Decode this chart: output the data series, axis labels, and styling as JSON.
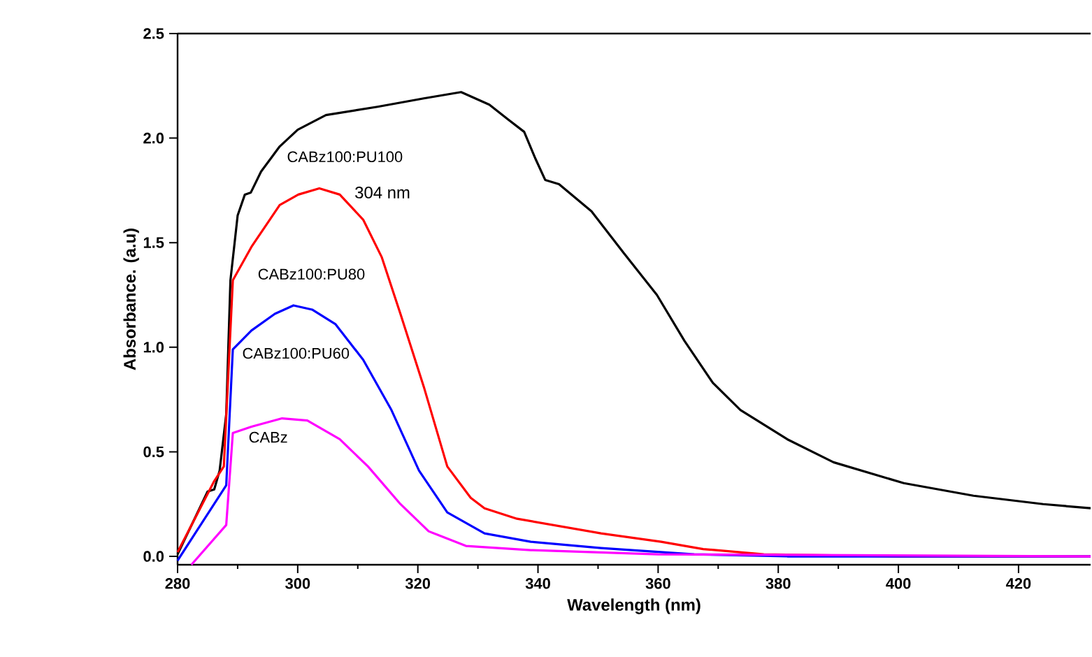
{
  "chart_data": {
    "type": "line",
    "xlabel": "Wavelength (nm)",
    "ylabel": "Absorbance. (a.u)",
    "xlim": [
      280,
      432
    ],
    "ylim": [
      -0.04,
      2.5
    ],
    "xticks": [
      280,
      300,
      320,
      340,
      360,
      380,
      400,
      420
    ],
    "yticks": [
      {
        "value": 0,
        "label": "0.0"
      },
      {
        "value": 0.5,
        "label": "0.5"
      },
      {
        "value": 1,
        "label": "1.0"
      },
      {
        "value": 1.5,
        "label": "1.5"
      },
      {
        "value": 2,
        "label": "2.0"
      },
      {
        "value": 2.5,
        "label": "2.5"
      }
    ],
    "series": [
      {
        "color": "#000000",
        "x": [
          280,
          285,
          286.1,
          287,
          288.1,
          288.8,
          290,
          291.2,
          292.2,
          293.9,
          297,
          300,
          304.7,
          313.3,
          321,
          327.2,
          331.9,
          335,
          337.7,
          339.6,
          341.2,
          343.5,
          348.9,
          354.3,
          359.8,
          364.4,
          369.1,
          373.7,
          381.5,
          389.2,
          400.9,
          412.5,
          424.1,
          432
        ],
        "values": [
          0.01,
          0.31,
          0.32,
          0.41,
          0.68,
          1.32,
          1.63,
          1.73,
          1.74,
          1.84,
          1.96,
          2.04,
          2.11,
          2.15,
          2.19,
          2.22,
          2.16,
          2.09,
          2.03,
          1.9,
          1.8,
          1.78,
          1.65,
          1.45,
          1.25,
          1.03,
          0.83,
          0.7,
          0.56,
          0.45,
          0.35,
          0.29,
          0.25,
          0.23
        ]
      },
      {
        "color": "#ff0000",
        "x": [
          280,
          286.1,
          287.7,
          289.2,
          292.3,
          297,
          300.1,
          303.6,
          307,
          310.9,
          314,
          317.1,
          321,
          324.9,
          328.8,
          331.1,
          336.5,
          350.5,
          360.5,
          367.5,
          377.6,
          400,
          432
        ],
        "values": [
          0.02,
          0.36,
          0.43,
          1.32,
          1.48,
          1.68,
          1.73,
          1.76,
          1.73,
          1.61,
          1.43,
          1.16,
          0.81,
          0.43,
          0.28,
          0.23,
          0.18,
          0.11,
          0.07,
          0.035,
          0.01,
          0.0,
          0.0
        ]
      },
      {
        "color": "#0000ff",
        "x": [
          280,
          288.1,
          289.2,
          292.3,
          296.2,
          299.3,
          302.4,
          306.3,
          310.9,
          315.6,
          320.2,
          324.9,
          331.1,
          338.8,
          350.5,
          366,
          381.5,
          432
        ],
        "values": [
          -0.02,
          0.34,
          0.99,
          1.08,
          1.16,
          1.2,
          1.18,
          1.11,
          0.94,
          0.7,
          0.41,
          0.21,
          0.11,
          0.07,
          0.04,
          0.01,
          0.0,
          0.0
        ]
      },
      {
        "color": "#ff00ff",
        "x": [
          282.3,
          288.1,
          289.2,
          292.3,
          297.4,
          301.6,
          307,
          311.7,
          317.1,
          321.8,
          328,
          338.8,
          360,
          432
        ],
        "values": [
          -0.04,
          0.15,
          0.59,
          0.62,
          0.66,
          0.65,
          0.56,
          0.43,
          0.25,
          0.12,
          0.05,
          0.03,
          0.01,
          0.0
        ]
      }
    ],
    "annotations": [
      "CABz100:PU100",
      {
        "text": "304 nm",
        "x": 303.6,
        "y": 1.76
      },
      "CABz100:PU80",
      "CABz100:PU60",
      "CABz"
    ]
  }
}
